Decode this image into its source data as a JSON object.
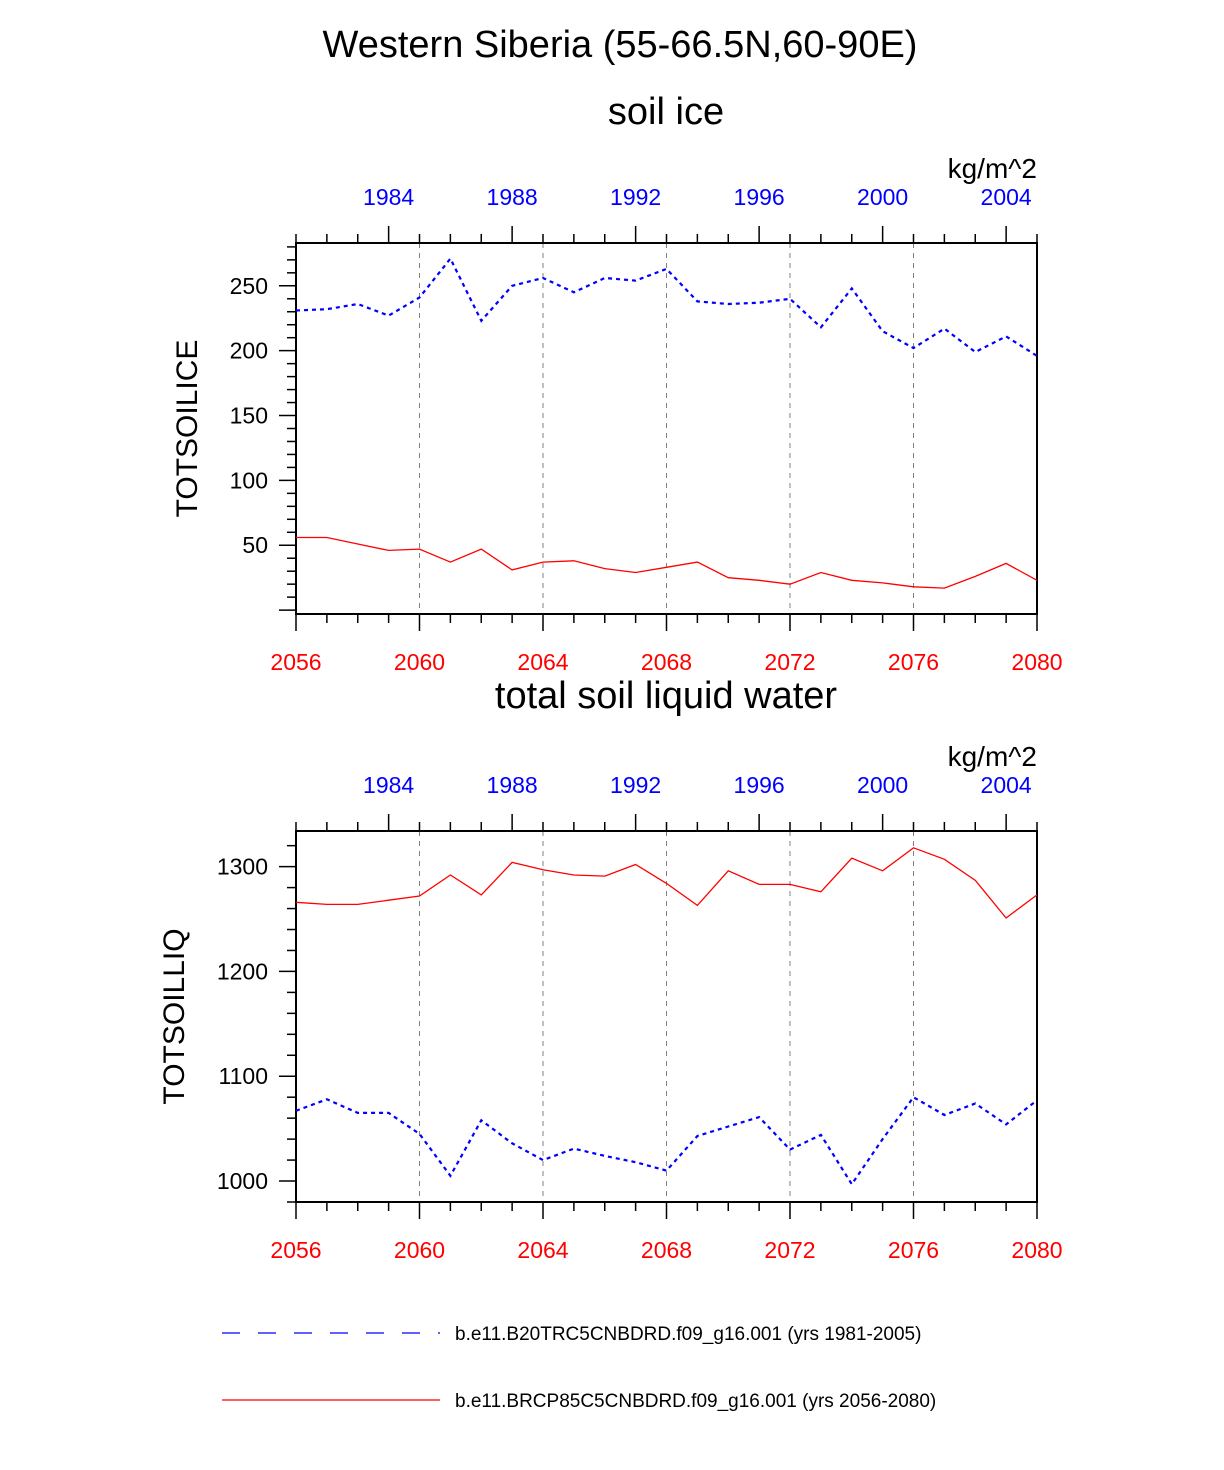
{
  "figure": {
    "main_title": "Western Siberia (55-66.5N,60-90E)"
  },
  "colors": {
    "historical": "#0000ff",
    "future": "#ff0000",
    "axis": "#000000",
    "grid": "#808080"
  },
  "legend": {
    "historical_label": "b.e11.B20TRC5CNBDRD.f09_g16.001 (yrs 1981-2005)",
    "future_label": "b.e11.BRCP85C5CNBDRD.f09_g16.001 (yrs 2056-2080)"
  },
  "chart_data": [
    {
      "type": "line",
      "title": "soil ice",
      "units": "kg/m^2",
      "ylabel": "TOTSOILICE",
      "ylim": [
        -3,
        283
      ],
      "yticks": [
        50,
        100,
        150,
        200,
        250
      ],
      "yticklabels": [
        "50",
        "100",
        "150",
        "200",
        "250"
      ],
      "x_bottom": {
        "range": [
          2056,
          2080
        ],
        "ticks": [
          2056,
          2060,
          2064,
          2068,
          2072,
          2076,
          2080
        ],
        "ticklabels": [
          "2056",
          "2060",
          "2064",
          "2068",
          "2072",
          "2076",
          "2080"
        ],
        "color": "#ff0000"
      },
      "x_top": {
        "range": [
          1981,
          2005
        ],
        "ticks": [
          1984,
          1988,
          1992,
          1996,
          2000,
          2004
        ],
        "ticklabels": [
          "1984",
          "1988",
          "1992",
          "1996",
          "2000",
          "2004"
        ],
        "color": "#0000ff"
      },
      "grid_x": [
        2060,
        2064,
        2068,
        2072,
        2076
      ],
      "series": [
        {
          "name": "b.e11.B20TRC5CNBDRD.f09_g16.001 (yrs 1981-2005)",
          "axis": "top",
          "style": "dotted",
          "color": "#0000ff",
          "x": [
            1981,
            1982,
            1983,
            1984,
            1985,
            1986,
            1987,
            1988,
            1989,
            1990,
            1991,
            1992,
            1993,
            1994,
            1995,
            1996,
            1997,
            1998,
            1999,
            2000,
            2001,
            2002,
            2003,
            2004,
            2005
          ],
          "values": [
            231,
            232,
            236,
            227,
            241,
            271,
            223,
            250,
            256,
            245,
            256,
            254,
            263,
            238,
            236,
            237,
            240,
            218,
            248,
            215,
            202,
            217,
            199,
            211,
            196
          ]
        },
        {
          "name": "b.e11.BRCP85C5CNBDRD.f09_g16.001 (yrs 2056-2080)",
          "axis": "bottom",
          "style": "solid",
          "color": "#ff0000",
          "x": [
            2056,
            2057,
            2058,
            2059,
            2060,
            2061,
            2062,
            2063,
            2064,
            2065,
            2066,
            2067,
            2068,
            2069,
            2070,
            2071,
            2072,
            2073,
            2074,
            2075,
            2076,
            2077,
            2078,
            2079,
            2080
          ],
          "values": [
            56,
            56,
            51,
            46,
            47,
            37,
            47,
            31,
            37,
            38,
            32,
            29,
            33,
            37,
            25,
            23,
            20,
            29,
            23,
            21,
            18,
            17,
            26,
            36,
            23
          ]
        }
      ]
    },
    {
      "type": "line",
      "title": "total soil liquid water",
      "units": "kg/m^2",
      "ylabel": "TOTSOILLIQ",
      "ylim": [
        980,
        1334
      ],
      "yticks": [
        1000,
        1100,
        1200,
        1300
      ],
      "yticklabels": [
        "1000",
        "1100",
        "1200",
        "1300"
      ],
      "x_bottom": {
        "range": [
          2056,
          2080
        ],
        "ticks": [
          2056,
          2060,
          2064,
          2068,
          2072,
          2076,
          2080
        ],
        "ticklabels": [
          "2056",
          "2060",
          "2064",
          "2068",
          "2072",
          "2076",
          "2080"
        ],
        "color": "#ff0000"
      },
      "x_top": {
        "range": [
          1981,
          2005
        ],
        "ticks": [
          1984,
          1988,
          1992,
          1996,
          2000,
          2004
        ],
        "ticklabels": [
          "1984",
          "1988",
          "1992",
          "1996",
          "2000",
          "2004"
        ],
        "color": "#0000ff"
      },
      "grid_x": [
        2060,
        2064,
        2068,
        2072,
        2076
      ],
      "series": [
        {
          "name": "b.e11.B20TRC5CNBDRD.f09_g16.001 (yrs 1981-2005)",
          "axis": "top",
          "style": "dotted",
          "color": "#0000ff",
          "x": [
            1981,
            1982,
            1983,
            1984,
            1985,
            1986,
            1987,
            1988,
            1989,
            1990,
            1991,
            1992,
            1993,
            1994,
            1995,
            1996,
            1997,
            1998,
            1999,
            2000,
            2001,
            2002,
            2003,
            2004,
            2005
          ],
          "values": [
            1067,
            1078,
            1065,
            1065,
            1045,
            1005,
            1058,
            1036,
            1020,
            1031,
            1024,
            1018,
            1010,
            1043,
            1052,
            1061,
            1030,
            1044,
            997,
            1040,
            1080,
            1063,
            1074,
            1054,
            1077
          ]
        },
        {
          "name": "b.e11.BRCP85C5CNBDRD.f09_g16.001 (yrs 2056-2080)",
          "axis": "bottom",
          "style": "solid",
          "color": "#ff0000",
          "x": [
            2056,
            2057,
            2058,
            2059,
            2060,
            2061,
            2062,
            2063,
            2064,
            2065,
            2066,
            2067,
            2068,
            2069,
            2070,
            2071,
            2072,
            2073,
            2074,
            2075,
            2076,
            2077,
            2078,
            2079,
            2080
          ],
          "values": [
            1266,
            1264,
            1264,
            1268,
            1272,
            1292,
            1273,
            1304,
            1297,
            1292,
            1291,
            1302,
            1284,
            1263,
            1296,
            1283,
            1283,
            1276,
            1308,
            1296,
            1318,
            1307,
            1287,
            1251,
            1273
          ]
        }
      ]
    }
  ]
}
